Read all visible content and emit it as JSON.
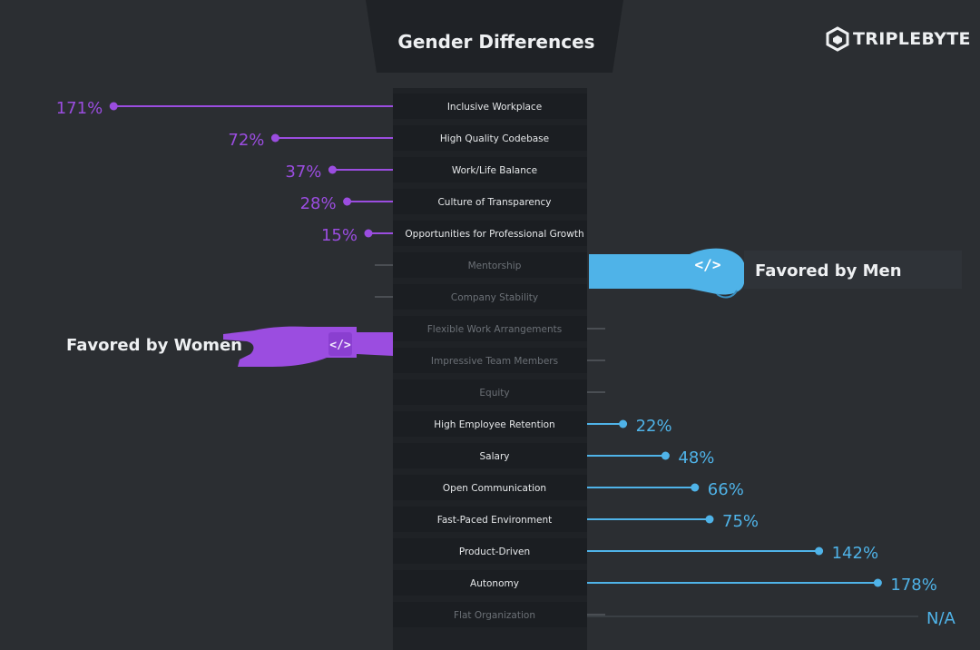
{
  "brand": {
    "name": "TRIPLEBYTE"
  },
  "colors": {
    "background": "#2b2e32",
    "panel": "#1f2226",
    "women": "#9b4de0",
    "men": "#4fb3e8",
    "faded": "#54585e",
    "text": "#eef0f2"
  },
  "chart_data": {
    "type": "bar",
    "title": "Gender Differences",
    "categories": [
      "Inclusive Workplace",
      "High Quality Codebase",
      "Work/Life Balance",
      "Culture of Transparency",
      "Opportunities for Professional Growth",
      "Mentorship",
      "Company Stability",
      "Flexible Work Arrangements",
      "Impressive Team Members",
      "Equity",
      "High Employee Retention",
      "Salary",
      "Open Communication",
      "Fast-Paced Environment",
      "Product-Driven",
      "Autonomy",
      "Flat Organization"
    ],
    "series": [
      {
        "name": "Favored by Women",
        "values": [
          171,
          72,
          37,
          28,
          15,
          null,
          null,
          null,
          null,
          null,
          null,
          null,
          null,
          null,
          null,
          null,
          null
        ],
        "labels": [
          "171%",
          "72%",
          "37%",
          "28%",
          "15%",
          "",
          "",
          "",
          "",
          "",
          "",
          "",
          "",
          "",
          "",
          "",
          ""
        ]
      },
      {
        "name": "Favored by Men",
        "values": [
          null,
          null,
          null,
          null,
          null,
          null,
          null,
          null,
          null,
          null,
          22,
          48,
          66,
          75,
          142,
          178,
          null
        ],
        "labels": [
          "",
          "",
          "",
          "",
          "",
          "",
          "",
          "",
          "",
          "",
          "22%",
          "48%",
          "66%",
          "75%",
          "142%",
          "178%",
          "N/A"
        ]
      }
    ]
  }
}
